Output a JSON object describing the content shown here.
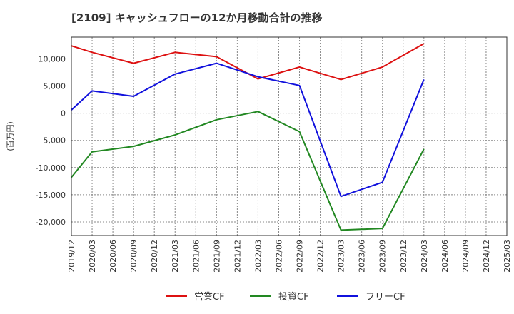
{
  "chart_data": {
    "type": "line",
    "title": "[2109]  キャッシュフローの12か月移動合計の推移",
    "ylabel": "(百万円)",
    "xlabel": "",
    "ylim": [
      -22500,
      14000
    ],
    "yticks": [
      10000,
      5000,
      0,
      -5000,
      -10000,
      -15000,
      -20000
    ],
    "ytick_labels": [
      "10,000",
      "5,000",
      "0",
      "-5,000",
      "-10,000",
      "-15,000",
      "-20,000"
    ],
    "categories": [
      "2019/12",
      "2020/03",
      "2020/06",
      "2020/09",
      "2020/12",
      "2021/03",
      "2021/06",
      "2021/09",
      "2021/12",
      "2022/03",
      "2022/06",
      "2022/09",
      "2022/12",
      "2023/03",
      "2023/06",
      "2023/09",
      "2023/12",
      "2024/03",
      "2024/06",
      "2024/09",
      "2024/12",
      "2025/03"
    ],
    "series": [
      {
        "name": "営業CF",
        "color": "#dd1111",
        "values": [
          12400,
          11200,
          null,
          9200,
          null,
          11200,
          null,
          10400,
          null,
          6300,
          null,
          8500,
          null,
          6200,
          null,
          8500,
          null,
          12800,
          null,
          null,
          null,
          null
        ]
      },
      {
        "name": "投資CF",
        "color": "#228822",
        "values": [
          -11800,
          -7100,
          null,
          -6100,
          null,
          -4000,
          null,
          -1200,
          null,
          300,
          null,
          -3400,
          null,
          -21500,
          null,
          -21200,
          null,
          -6600,
          null,
          null,
          null,
          null
        ]
      },
      {
        "name": "フリーCF",
        "color": "#1111dd",
        "values": [
          600,
          4100,
          null,
          3100,
          null,
          7200,
          null,
          9200,
          null,
          6700,
          null,
          5100,
          null,
          -15300,
          null,
          -12700,
          null,
          6200,
          null,
          null,
          null,
          null
        ]
      }
    ],
    "legend_position": "bottom",
    "grid": true
  }
}
